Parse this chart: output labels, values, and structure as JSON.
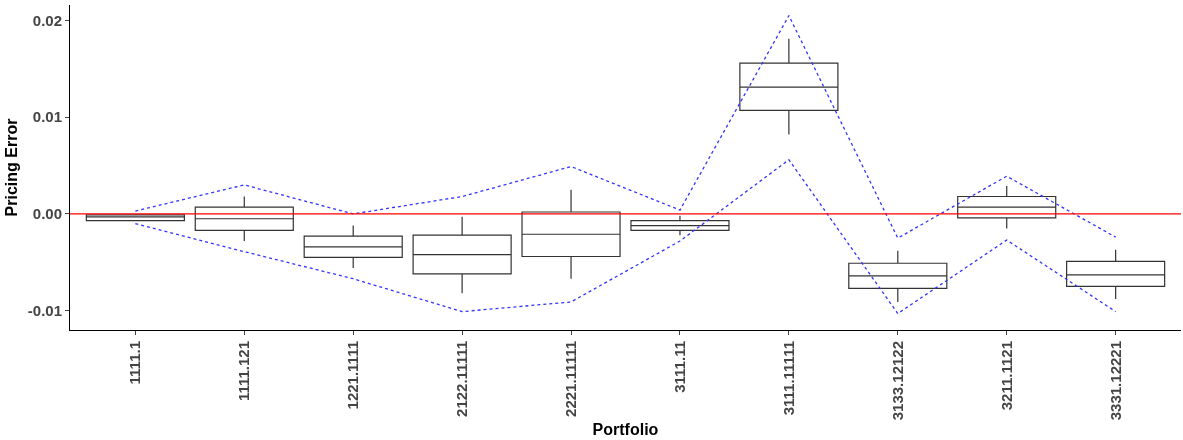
{
  "chart_data": {
    "type": "box",
    "xlabel": "Portfolio",
    "ylabel": "Pricing Error",
    "categories": [
      "1111.1",
      "1111.121",
      "1221.1111",
      "2122.11111",
      "2221.11111",
      "3111.11",
      "3111.11111",
      "3133.12122",
      "3211.1121",
      "3331.12221"
    ],
    "color": "#333333",
    "boxes": [
      {
        "low": -0.0007,
        "q1": -0.0007,
        "median": -0.0003,
        "q3": -0.0001,
        "high": -0.0001
      },
      {
        "low": -0.0028,
        "q1": -0.0017,
        "median": -0.0005,
        "q3": 0.0007,
        "high": 0.0018
      },
      {
        "low": -0.0056,
        "q1": -0.0045,
        "median": -0.0034,
        "q3": -0.0023,
        "high": -0.0012
      },
      {
        "low": -0.0082,
        "q1": -0.0062,
        "median": -0.0042,
        "q3": -0.0022,
        "high": -0.0003
      },
      {
        "low": -0.0067,
        "q1": -0.0044,
        "median": -0.0021,
        "q3": 0.0002,
        "high": 0.0025
      },
      {
        "low": -0.0022,
        "q1": -0.0017,
        "median": -0.0012,
        "q3": -0.0007,
        "high": -0.0002
      },
      {
        "low": 0.0082,
        "q1": 0.0107,
        "median": 0.0131,
        "q3": 0.0156,
        "high": 0.0181
      },
      {
        "low": -0.0091,
        "q1": -0.0077,
        "median": -0.0064,
        "q3": -0.0051,
        "high": -0.0038
      },
      {
        "low": -0.0015,
        "q1": -0.0004,
        "median": 0.0007,
        "q3": 0.0018,
        "high": 0.0029
      },
      {
        "low": -0.0088,
        "q1": -0.0075,
        "median": -0.0063,
        "q3": -0.0049,
        "high": -0.0037
      }
    ],
    "series": [
      {
        "type": "line",
        "color": "#3333ff",
        "line_style": "dotted",
        "values": [
          0.0003,
          0.003,
          0.0,
          0.0018,
          0.0049,
          0.0004,
          0.0205,
          -0.0025,
          0.0039,
          -0.0024
        ]
      },
      {
        "type": "line",
        "color": "#3333ff",
        "line_style": "dotted",
        "values": [
          -0.001,
          -0.0039,
          -0.0067,
          -0.0101,
          -0.0091,
          -0.0028,
          0.0056,
          -0.0103,
          -0.0027,
          -0.0101
        ]
      }
    ],
    "ref_lines": [
      {
        "axis": "y",
        "value": 0,
        "color": "#ff0000"
      }
    ],
    "ylim": [
      -0.012,
      0.0216
    ],
    "yticks": [
      {
        "value": -0.01,
        "label": "-0.01"
      },
      {
        "value": 0,
        "label": "0.00"
      },
      {
        "value": 0.01,
        "label": "0.01"
      },
      {
        "value": 0.02,
        "label": "0.02"
      }
    ],
    "tick_labels": "xy"
  }
}
